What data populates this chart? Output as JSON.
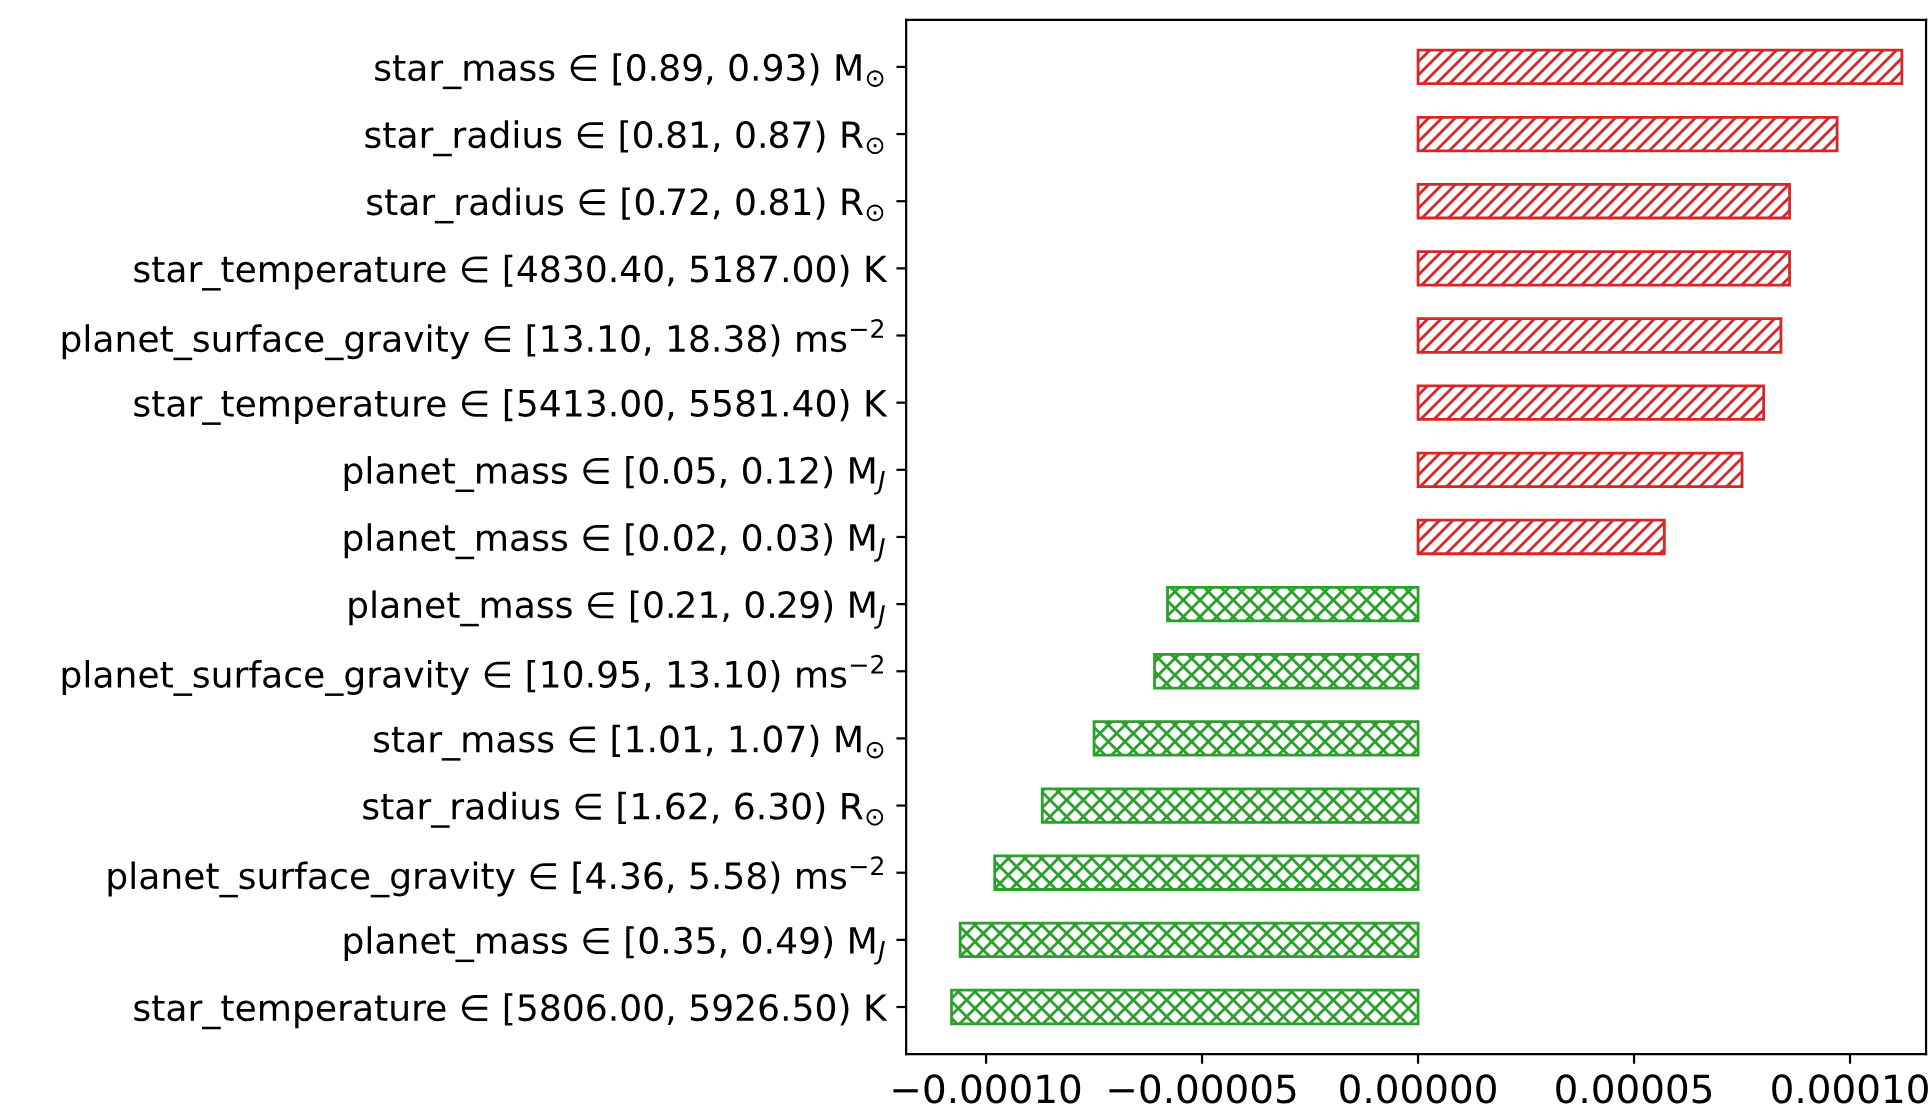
{
  "chart_data": {
    "type": "bar",
    "orientation": "horizontal",
    "categories": [
      "star_mass ∈ [0.89, 0.93) M$_{⊙}$",
      "star_radius ∈ [0.81, 0.87) R$_{⊙}$",
      "star_radius ∈ [0.72, 0.81) R$_{⊙}$",
      "star_temperature ∈ [4830.40, 5187.00) K",
      "planet_surface_gravity ∈ [13.10, 18.38) ms$^{−2}$",
      "star_temperature ∈ [5413.00, 5581.40) K",
      "planet_mass ∈ [0.05, 0.12) M$_{J}$",
      "planet_mass ∈ [0.02, 0.03) M$_{J}$",
      "planet_mass ∈ [0.21, 0.29) M$_{J}$",
      "planet_surface_gravity ∈ [10.95, 13.10) ms$^{−2}$",
      "star_mass ∈ [1.01, 1.07) M$_{⊙}$",
      "star_radius ∈ [1.62, 6.30) R$_{⊙}$",
      "planet_surface_gravity ∈ [4.36, 5.58) ms$^{−2}$",
      "planet_mass ∈ [0.35, 0.49) M$_{J}$",
      "star_temperature ∈ [5806.00, 5926.50) K"
    ],
    "values": [
      0.000112,
      9.7e-05,
      8.6e-05,
      8.6e-05,
      8.4e-05,
      8e-05,
      7.5e-05,
      5.7e-05,
      -5.8e-05,
      -6.1e-05,
      -7.5e-05,
      -8.7e-05,
      -9.8e-05,
      -0.000106,
      -0.000108
    ],
    "colors": [
      "#d62728",
      "#d62728",
      "#d62728",
      "#d62728",
      "#d62728",
      "#d62728",
      "#d62728",
      "#d62728",
      "#2ca02c",
      "#2ca02c",
      "#2ca02c",
      "#2ca02c",
      "#2ca02c",
      "#2ca02c",
      "#2ca02c"
    ],
    "xlim": [
      -0.0001185,
      0.0001176
    ],
    "xticks": [
      {
        "value": -0.0001,
        "label": "−0.00010"
      },
      {
        "value": -5e-05,
        "label": "−0.00005"
      },
      {
        "value": 0,
        "label": "0.00000"
      },
      {
        "value": 5e-05,
        "label": "0.00005"
      },
      {
        "value": 0.0001,
        "label": "0.00010"
      }
    ],
    "grid": false,
    "legend": false
  }
}
